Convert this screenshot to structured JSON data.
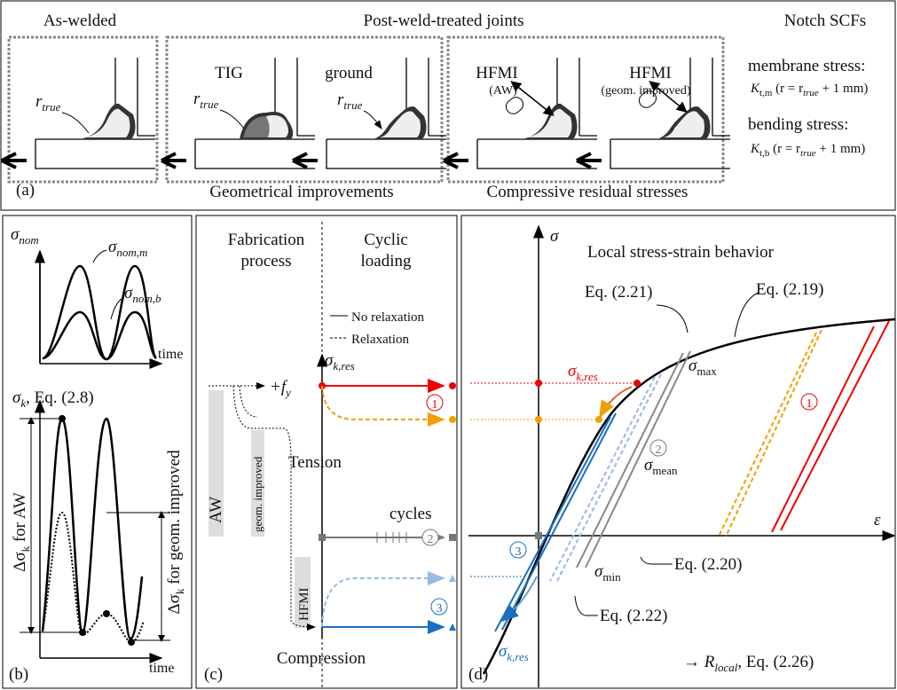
{
  "panel_a": {
    "label": "(a)",
    "as_welded": "As-welded",
    "post_weld": "Post-weld-treated joints",
    "notch_scfs": "Notch SCFs",
    "tig": "TIG",
    "ground": "ground",
    "hfmi_aw": "HFMI",
    "hfmi_aw_note": "(AW)",
    "hfmi_gi": "HFMI",
    "hfmi_gi_note": "(geom. improved)",
    "r_true": {
      "main": "r",
      "sub": "true"
    },
    "geometrical": "Geometrical improvements",
    "compressive": "Compressive residual stresses",
    "membrane": "membrane stress:",
    "bending": "bending stress:",
    "k_tm": {
      "main": "K",
      "sub": "t,m",
      "mid": " (r = r",
      "sub2": "true",
      "end": " + 1 mm)"
    },
    "k_tb": {
      "main": "K",
      "sub": "t,b",
      "mid": " (r = r",
      "sub2": "true",
      "end": " + 1 mm)"
    }
  },
  "panel_b": {
    "label": "(b)",
    "sigma_nom": {
      "main": "σ",
      "sub": "nom"
    },
    "sigma_nom_m": {
      "main": "σ",
      "sub": "nom,m"
    },
    "sigma_nom_b": {
      "main": "σ",
      "sub": "nom,b"
    },
    "time": "time",
    "sigma_k": {
      "main": "σ",
      "sub": "k",
      "rest": ", Eq. (2.8)"
    },
    "delta_aw": {
      "main": "Δσ",
      "sub": "k",
      "rest": " for AW"
    },
    "delta_gi": {
      "main": "Δσ",
      "sub": "k",
      "rest": " for geom. improved"
    }
  },
  "panel_c": {
    "label": "(c)",
    "fabrication": [
      "Fabrication",
      "process"
    ],
    "cyclic": [
      "Cyclic",
      "loading"
    ],
    "no_relax": "No relaxation",
    "relax": "Relaxation",
    "sigma_kres": {
      "main": "σ",
      "sub": "k,res"
    },
    "fy": {
      "main": "+f",
      "sub": "y"
    },
    "aw": "AW",
    "geom": "geom. improved",
    "tension": "Tension",
    "cycles": "cycles",
    "hfmi": "HFMI",
    "compression": "Compression",
    "markers": [
      "1",
      "2",
      "3"
    ]
  },
  "panel_d": {
    "label": "(d)",
    "sigma": "σ",
    "title": "Local stress-strain behavior",
    "eq221": "Eq. (2.21)",
    "eq219": "Eq. (2.19)",
    "eq220": "Eq. (2.20)",
    "eq222": "Eq. (2.22)",
    "sigma_kres": {
      "main": "σ",
      "sub": "k,res"
    },
    "sigma_max": {
      "main": "σ",
      "sub": "max"
    },
    "sigma_mean": {
      "main": "σ",
      "sub": "mean"
    },
    "sigma_min": {
      "main": "σ",
      "sub": "min"
    },
    "epsilon": "ε",
    "r_local": {
      "pre": "→ ",
      "main": "R",
      "sub": "local",
      "rest": ", Eq. (2.26)"
    },
    "markers": [
      "1",
      "2",
      "3"
    ]
  }
}
